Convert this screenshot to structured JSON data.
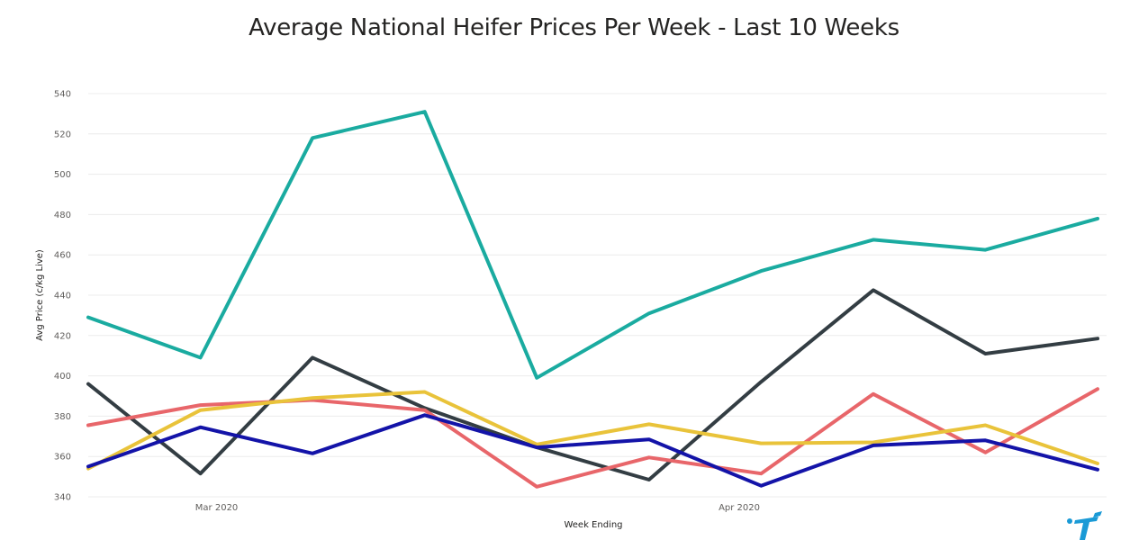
{
  "chart_data": {
    "type": "line",
    "title": "Average National Heifer Prices Per Week - Last 10 Weeks",
    "xlabel": "Week Ending",
    "ylabel": "Avg Price (c/kg Live)",
    "ylim": [
      340,
      540
    ],
    "y_ticks": [
      "540",
      "520",
      "500",
      "480",
      "460",
      "440",
      "420",
      "400",
      "380",
      "360",
      "340"
    ],
    "x_ticks": [
      "Mar 2020",
      "Apr 2020"
    ],
    "grid": true,
    "series": [
      {
        "color": "#1aaba0",
        "values": [
          429,
          409,
          518,
          531,
          399,
          431,
          452,
          467.5,
          462.5,
          478
        ]
      },
      {
        "color": "#333d43",
        "values": [
          396,
          351.5,
          409,
          384,
          364.5,
          348.5,
          397,
          442.5,
          411,
          418.5
        ]
      },
      {
        "color": "#e8666a",
        "values": [
          375.5,
          385.5,
          388,
          383,
          345,
          359.5,
          351.5,
          391,
          362,
          393.5
        ]
      },
      {
        "color": "#e9c33a",
        "values": [
          354,
          383,
          389,
          392,
          366,
          376,
          366.5,
          367,
          375.5,
          356.5
        ]
      },
      {
        "color": "#1313a8",
        "values": [
          355,
          374.5,
          361.5,
          380.5,
          364.5,
          368.5,
          345.5,
          365.5,
          368,
          353.5
        ]
      }
    ]
  },
  "logo_text": "t"
}
